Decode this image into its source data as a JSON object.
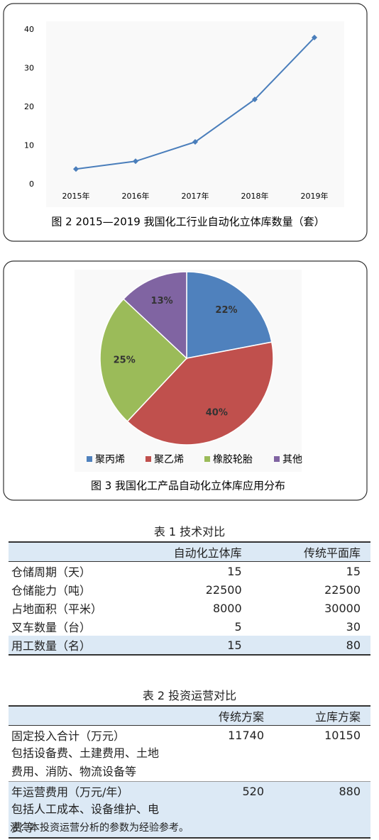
{
  "chart_data": [
    {
      "type": "line",
      "title": "图 2  2015—2019 我国化工行业自动化立体库数量（套）",
      "categories": [
        "2015年",
        "2016年",
        "2017年",
        "2018年",
        "2019年"
      ],
      "values": [
        4,
        6,
        11,
        22,
        38
      ],
      "color": "#4a7ebb",
      "ylim": [
        0,
        40
      ],
      "yticks": [
        0,
        10,
        20,
        30,
        40
      ]
    },
    {
      "type": "pie",
      "title": "图 3  我国化工产品自动化立体库应用分布",
      "categories": [
        "聚丙烯",
        "聚乙烯",
        "橡胶轮胎",
        "其他"
      ],
      "values": [
        22,
        40,
        25,
        13
      ],
      "value_labels": [
        "22%",
        "40%",
        "25%",
        "13%"
      ],
      "colors": [
        "#4f81bd",
        "#c0504d",
        "#9bbb59",
        "#8064a2"
      ]
    }
  ],
  "tables": [
    {
      "title": "表 1  技术对比",
      "header": [
        "自动化立体库",
        "传统平面库"
      ],
      "rows": [
        {
          "label": "仓储周期（天）",
          "values": [
            15,
            15
          ]
        },
        {
          "label": "仓储能力（吨）",
          "values": [
            22500,
            22500
          ]
        },
        {
          "label": "占地面积（平米）",
          "values": [
            8000,
            30000
          ]
        },
        {
          "label": "叉车数量（台）",
          "values": [
            5,
            30
          ]
        },
        {
          "label": "用工数量（名）",
          "values": [
            15,
            80
          ]
        }
      ]
    },
    {
      "title": "表 2  投资运营对比",
      "header": [
        "传统方案",
        "立库方案"
      ],
      "rows": [
        {
          "label": "固定投入合计（万元）",
          "values": [
            11740,
            10150
          ],
          "detail": "包括设备费、土建费用、土地费用、消防、物流设备等"
        },
        {
          "label": "年运营费用（万元/年）",
          "values": [
            520,
            880
          ],
          "detail": "包括人工成本、设备维护、电费等"
        }
      ]
    }
  ],
  "note": "注：本投资运营分析的参数为经验参考。"
}
